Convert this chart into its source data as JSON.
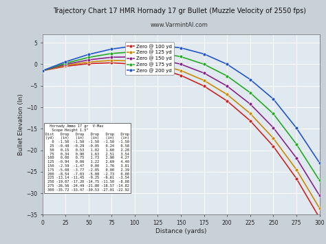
{
  "title": "Trajectory Chart 17 HMR Hornady 17 gr Bullet (Muzzle Velocity of 2550 fps)",
  "subtitle": "www.VarmintAl.com",
  "xlabel": "Distance (yards)",
  "ylabel": "Bullet Elevation (In)",
  "xlim": [
    0,
    300
  ],
  "ylim": [
    -35,
    7
  ],
  "xticks": [
    0,
    25,
    50,
    75,
    100,
    125,
    150,
    175,
    200,
    225,
    250,
    275,
    300
  ],
  "yticks": [
    -35,
    -30,
    -25,
    -20,
    -15,
    -10,
    -5,
    0,
    5
  ],
  "distances": [
    0,
    25,
    50,
    75,
    100,
    125,
    150,
    175,
    200,
    225,
    250,
    275,
    300
  ],
  "series": [
    {
      "label": "Zero @ 100 yd",
      "color": "#cc2222",
      "data": [
        -1.5,
        -0.48,
        0.15,
        0.34,
        0.0,
        -0.94,
        -2.59,
        -5.08,
        -8.54,
        -13.14,
        -19.07,
        -26.56,
        -35.72
      ]
    },
    {
      "label": "Zero @ 125 yd",
      "color": "#cc8800",
      "data": [
        -1.5,
        -0.29,
        0.53,
        0.9,
        0.75,
        0.0,
        -1.47,
        -3.77,
        -7.03,
        -11.45,
        -17.2,
        -24.49,
        -33.47
      ]
    },
    {
      "label": "Zero @ 150 yd",
      "color": "#882288",
      "data": [
        -1.5,
        -0.05,
        1.02,
        1.63,
        1.73,
        1.22,
        0.0,
        -2.05,
        -5.08,
        -9.25,
        -14.75,
        -21.8,
        -30.53
      ]
    },
    {
      "label": "Zero @ 175 yd",
      "color": "#22aa22",
      "data": [
        -1.5,
        0.24,
        1.6,
        2.51,
        2.9,
        2.69,
        1.76,
        0.0,
        -2.73,
        -6.61,
        -11.5,
        -18.57,
        -27.01
      ]
    },
    {
      "label": "Zero @ 200 yd",
      "color": "#2255cc",
      "data": [
        -1.5,
        0.58,
        2.28,
        3.54,
        4.27,
        4.4,
        3.81,
        2.39,
        0.0,
        -3.54,
        -8.08,
        -14.82,
        -22.92
      ]
    }
  ],
  "table_header": [
    "Hornady Ammo 17 gr  V-Max",
    "Scope Height 1.5\""
  ],
  "table_cols": [
    "Dist",
    "Drop",
    "Drop",
    "Drop",
    "Drop",
    "Drop"
  ],
  "table_units": [
    "(yd)",
    "(in)",
    "(in)",
    "(in)",
    "(in)",
    "(in)"
  ],
  "table_rows": [
    [
      0,
      -1.5,
      -1.5,
      -1.5,
      -1.5,
      -1.5
    ],
    [
      25,
      -0.48,
      -0.29,
      -0.05,
      0.24,
      0.58
    ],
    [
      50,
      0.15,
      0.53,
      1.02,
      1.6,
      2.28
    ],
    [
      75,
      0.34,
      0.9,
      1.63,
      2.51,
      3.54
    ],
    [
      100,
      0.0,
      0.75,
      1.73,
      2.9,
      4.27
    ],
    [
      125,
      -0.94,
      0.0,
      1.22,
      2.69,
      4.4
    ],
    [
      150,
      -2.59,
      -1.47,
      0.0,
      1.76,
      3.81
    ],
    [
      175,
      -5.08,
      -3.77,
      -2.05,
      0.0,
      2.39
    ],
    [
      200,
      -8.54,
      -7.03,
      -5.08,
      -2.73,
      0.0
    ],
    [
      225,
      -13.14,
      -11.45,
      -9.25,
      -6.61,
      -3.54
    ],
    [
      250,
      -19.07,
      -17.2,
      -14.75,
      -11.5,
      -8.08
    ],
    [
      275,
      -26.56,
      -24.49,
      -21.8,
      -18.57,
      -14.82
    ],
    [
      300,
      -35.72,
      -33.47,
      -30.53,
      -27.01,
      -22.92
    ]
  ],
  "bg_color": "#c8d0d8",
  "plot_bg_color": "#e0e8f0",
  "grid_color": "#ffffff"
}
